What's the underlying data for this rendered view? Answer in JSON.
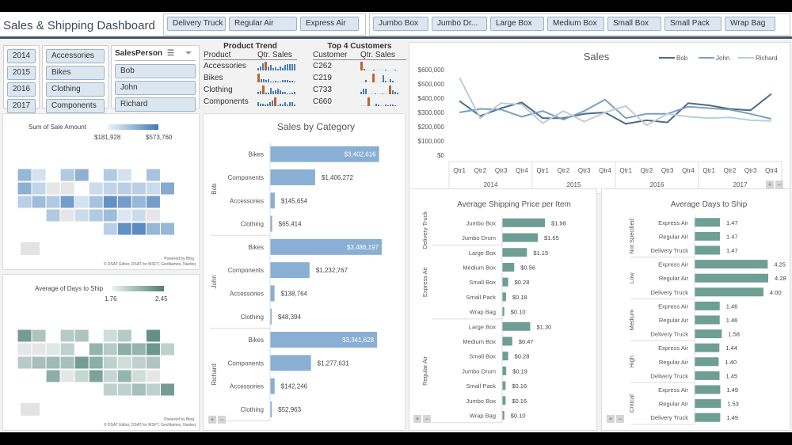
{
  "header": {
    "title": "Sales & Shipping Dashboard"
  },
  "ship_mode_slicer": [
    "Delivery Truck",
    "Regular Air",
    "Express Air"
  ],
  "container_slicer": [
    "Jumbo Box",
    "Jumbo Dr...",
    "Large Box",
    "Medium Box",
    "Small Box",
    "Small Pack",
    "Wrap Bag"
  ],
  "year_slicer": [
    "2014",
    "2015",
    "2016",
    "2017"
  ],
  "category_slicer": [
    "Accessories",
    "Bikes",
    "Clothing",
    "Components"
  ],
  "salesperson_slicer": {
    "title": "SalesPerson",
    "items": [
      "Bob",
      "John",
      "Richard"
    ],
    "multiselect_icon": "multi-select-icon",
    "clear_icon": "clear-filter-icon"
  },
  "product_trend": {
    "title": "Product Trend",
    "col_product": "Product",
    "col_sales": "Qtr. Sales",
    "rows": [
      {
        "name": "Accessories",
        "spark": [
          3,
          5,
          8,
          10,
          5,
          6,
          3,
          4,
          2,
          5,
          3,
          6,
          7,
          7,
          7,
          7
        ],
        "high": 3
      },
      {
        "name": "Bikes",
        "spark": [
          10,
          4,
          4,
          3,
          4,
          1,
          1,
          2,
          1,
          1,
          3,
          3,
          3,
          2,
          2,
          1
        ],
        "high": 0
      },
      {
        "name": "Clothing",
        "spark": [
          3,
          4,
          10,
          2,
          2,
          7,
          4,
          5,
          6,
          5,
          3,
          3,
          1,
          1,
          2,
          3
        ],
        "high": 2
      },
      {
        "name": "Components",
        "spark": [
          5,
          3,
          3,
          2,
          3,
          5,
          6,
          10,
          1,
          3,
          2,
          5,
          2,
          5,
          5,
          2
        ],
        "high": 7
      }
    ]
  },
  "top_customers": {
    "title": "Top 4 Customers",
    "col_customer": "Customer",
    "col_sales": "Qtr. Sales",
    "rows": [
      {
        "name": "C262",
        "spark": [
          10,
          2,
          0,
          0,
          0,
          1,
          0,
          0,
          0,
          0,
          1,
          0,
          0,
          0,
          1,
          0
        ],
        "high": 0
      },
      {
        "name": "C219",
        "spark": [
          0,
          0,
          3,
          0,
          0,
          10,
          0,
          0,
          0,
          8,
          2,
          0,
          4,
          2,
          0,
          0
        ],
        "high": 5
      },
      {
        "name": "C733",
        "spark": [
          3,
          6,
          6,
          0,
          0,
          0,
          1,
          0,
          0,
          1,
          0,
          0,
          10,
          5,
          3,
          2
        ],
        "high": 12
      },
      {
        "name": "C660",
        "spark": [
          0,
          0,
          0,
          10,
          0,
          0,
          3,
          2,
          0,
          0,
          2,
          1,
          2,
          2,
          1,
          0
        ],
        "high": 3
      }
    ]
  },
  "sales_map": {
    "legend_title": "Sum of Sale Amount",
    "min_label": "$181,928",
    "max_label": "$573,760",
    "credit_top": "Powered by Bing",
    "credit_bottom": "© DSAT Editor, DSAT for MSFT, GeoNames, Navteq",
    "color_low": "#eef3f9",
    "color_high": "#3f7ab5"
  },
  "days_map": {
    "legend_title": "Average of Days to Ship",
    "min_label": "1.76",
    "max_label": "2.45",
    "credit_top": "Powered by Bing",
    "credit_bottom": "© DSAT Editor, DSAT for MSFT, GeoNames, Navteq",
    "color_low": "#eef4f2",
    "color_high": "#4d7f72"
  },
  "chart_data": [
    {
      "type": "line",
      "title": "Sales",
      "x": [
        "Qtr1",
        "Qtr2",
        "Qtr3",
        "Qtr4",
        "Qtr1",
        "Qtr2",
        "Qtr3",
        "Qtr4",
        "Qtr1",
        "Qtr2",
        "Qtr3",
        "Qtr4",
        "Qtr1",
        "Qtr2",
        "Qtr3",
        "Qtr4"
      ],
      "x_groups": [
        "2014",
        "2015",
        "2016",
        "2017"
      ],
      "yticks": [
        "$0",
        "$100,000",
        "$200,000",
        "$300,000",
        "$400,000",
        "$500,000",
        "$600,000"
      ],
      "ylim": [
        0,
        600000
      ],
      "legend": "top-right",
      "series": [
        {
          "name": "Bob",
          "color": "#4f6b85",
          "values": [
            380000,
            275000,
            330000,
            370000,
            260000,
            260000,
            290000,
            300000,
            220000,
            245000,
            230000,
            365000,
            350000,
            325000,
            315000,
            430000
          ]
        },
        {
          "name": "John",
          "color": "#7c9fbf",
          "values": [
            300000,
            325000,
            320000,
            270000,
            310000,
            250000,
            310000,
            390000,
            260000,
            290000,
            290000,
            340000,
            330000,
            320000,
            290000,
            255000
          ]
        },
        {
          "name": "Richard",
          "color": "#b9cde0",
          "values": [
            545000,
            260000,
            365000,
            355000,
            225000,
            310000,
            235000,
            300000,
            345000,
            210000,
            290000,
            270000,
            260000,
            265000,
            245000,
            240000
          ]
        }
      ]
    },
    {
      "type": "bar",
      "title": "Sales by Category",
      "orientation": "horizontal",
      "color": "#8aafd4",
      "groups": [
        {
          "name": "Bob",
          "categories": [
            "Bikes",
            "Components",
            "Accessories",
            "Clothing"
          ],
          "values": [
            3402616,
            1406272,
            145654,
            65414
          ],
          "labels": [
            "$3,402,616",
            "$1,406,272",
            "$145,654",
            "$65,414"
          ]
        },
        {
          "name": "John",
          "categories": [
            "Bikes",
            "Components",
            "Accessories",
            "Clothing"
          ],
          "values": [
            3486197,
            1232767,
            138764,
            48394
          ],
          "labels": [
            "$3,486,197",
            "$1,232,767",
            "$138,764",
            "$48,394"
          ]
        },
        {
          "name": "Richard",
          "categories": [
            "Bikes",
            "Components",
            "Accessories",
            "Clothing"
          ],
          "values": [
            3341628,
            1277631,
            142246,
            52963
          ],
          "labels": [
            "$3,341,628",
            "$1,277,631",
            "$142,246",
            "$52,963"
          ]
        }
      ]
    },
    {
      "type": "bar",
      "title": "Average Shipping Price per Item",
      "orientation": "horizontal",
      "color": "#6e9e94",
      "groups": [
        {
          "name": "Delivery Truck",
          "categories": [
            "Jumbo Box",
            "Jumbo Drum"
          ],
          "values": [
            1.98,
            1.65
          ],
          "labels": [
            "$1.98",
            "$1.65"
          ]
        },
        {
          "name": "Express Air",
          "categories": [
            "Large Box",
            "Medium Box",
            "Small Box",
            "Small Pack",
            "Wrap Bag"
          ],
          "values": [
            1.15,
            0.56,
            0.28,
            0.18,
            0.1
          ],
          "labels": [
            "$1.15",
            "$0.56",
            "$0.28",
            "$0.18",
            "$0.10"
          ]
        },
        {
          "name": "Regular Air",
          "categories": [
            "Large Box",
            "Medium Box",
            "Small Box",
            "Jumbo Drum",
            "Small Pack",
            "Jumbo Box",
            "Wrap Bag"
          ],
          "values": [
            1.3,
            0.47,
            0.28,
            0.19,
            0.16,
            0.16,
            0.1
          ],
          "labels": [
            "$1.30",
            "$0.47",
            "$0.28",
            "$0.19",
            "$0.16",
            "$0.16",
            "$0.10"
          ]
        }
      ]
    },
    {
      "type": "bar",
      "title": "Average Days to Ship",
      "orientation": "horizontal",
      "color": "#6e9e94",
      "groups": [
        {
          "name": "Not Specified",
          "categories": [
            "Express Air",
            "Regular Air",
            "Delivery Truck"
          ],
          "values": [
            1.47,
            1.47,
            1.47
          ],
          "labels": [
            "1.47",
            "1.47",
            "1.47"
          ]
        },
        {
          "name": "Low",
          "categories": [
            "Express Air",
            "Regular Air",
            "Delivery Truck"
          ],
          "values": [
            4.25,
            4.28,
            4.0
          ],
          "labels": [
            "4.25",
            "4.28",
            "4.00"
          ]
        },
        {
          "name": "Medium",
          "categories": [
            "Express Air",
            "Regular Air",
            "Delivery Truck"
          ],
          "values": [
            1.46,
            1.46,
            1.58
          ],
          "labels": [
            "1.46",
            "1.46",
            "1.58"
          ]
        },
        {
          "name": "High",
          "categories": [
            "Express Air",
            "Regular Air",
            "Delivery Truck"
          ],
          "values": [
            1.44,
            1.4,
            1.45
          ],
          "labels": [
            "1.44",
            "1.40",
            "1.45"
          ]
        },
        {
          "name": "Critical",
          "categories": [
            "Express Air",
            "Regular Air",
            "Delivery Truck"
          ],
          "values": [
            1.49,
            1.53,
            1.49
          ],
          "labels": [
            "1.49",
            "1.53",
            "1.49"
          ]
        }
      ]
    }
  ],
  "zoom_controls": {
    "plus": "+",
    "minus": "−"
  }
}
